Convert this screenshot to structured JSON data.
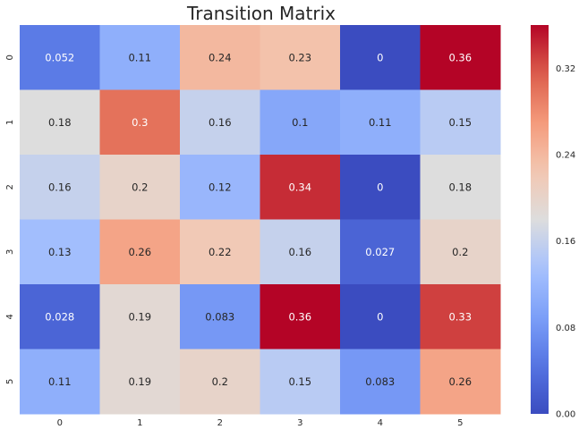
{
  "chart_data": {
    "type": "heatmap",
    "title": "Transition Matrix",
    "x_tick_labels": [
      "0",
      "1",
      "2",
      "3",
      "4",
      "5"
    ],
    "y_tick_labels": [
      "0",
      "1",
      "2",
      "3",
      "4",
      "5"
    ],
    "values": [
      [
        0.052,
        0.11,
        0.24,
        0.23,
        0,
        0.36
      ],
      [
        0.18,
        0.3,
        0.16,
        0.1,
        0.11,
        0.15
      ],
      [
        0.16,
        0.2,
        0.12,
        0.34,
        0,
        0.18
      ],
      [
        0.13,
        0.26,
        0.22,
        0.16,
        0.027,
        0.2
      ],
      [
        0.028,
        0.19,
        0.083,
        0.36,
        0,
        0.33
      ],
      [
        0.11,
        0.19,
        0.2,
        0.15,
        0.083,
        0.26
      ]
    ],
    "value_labels": [
      [
        "0.052",
        "0.11",
        "0.24",
        "0.23",
        "0",
        "0.36"
      ],
      [
        "0.18",
        "0.3",
        "0.16",
        "0.1",
        "0.11",
        "0.15"
      ],
      [
        "0.16",
        "0.2",
        "0.12",
        "0.34",
        "0",
        "0.18"
      ],
      [
        "0.13",
        "0.26",
        "0.22",
        "0.16",
        "0.027",
        "0.2"
      ],
      [
        "0.028",
        "0.19",
        "0.083",
        "0.36",
        "0",
        "0.33"
      ],
      [
        "0.11",
        "0.19",
        "0.2",
        "0.15",
        "0.083",
        "0.26"
      ]
    ],
    "colormap": "coolwarm",
    "vmin": 0,
    "vmax": 0.36,
    "colorbar_ticks": [
      "0.00",
      "0.08",
      "0.16",
      "0.24",
      "0.32"
    ],
    "colorbar_tick_values": [
      0,
      0.08,
      0.16,
      0.24,
      0.32
    ],
    "grid": false
  }
}
